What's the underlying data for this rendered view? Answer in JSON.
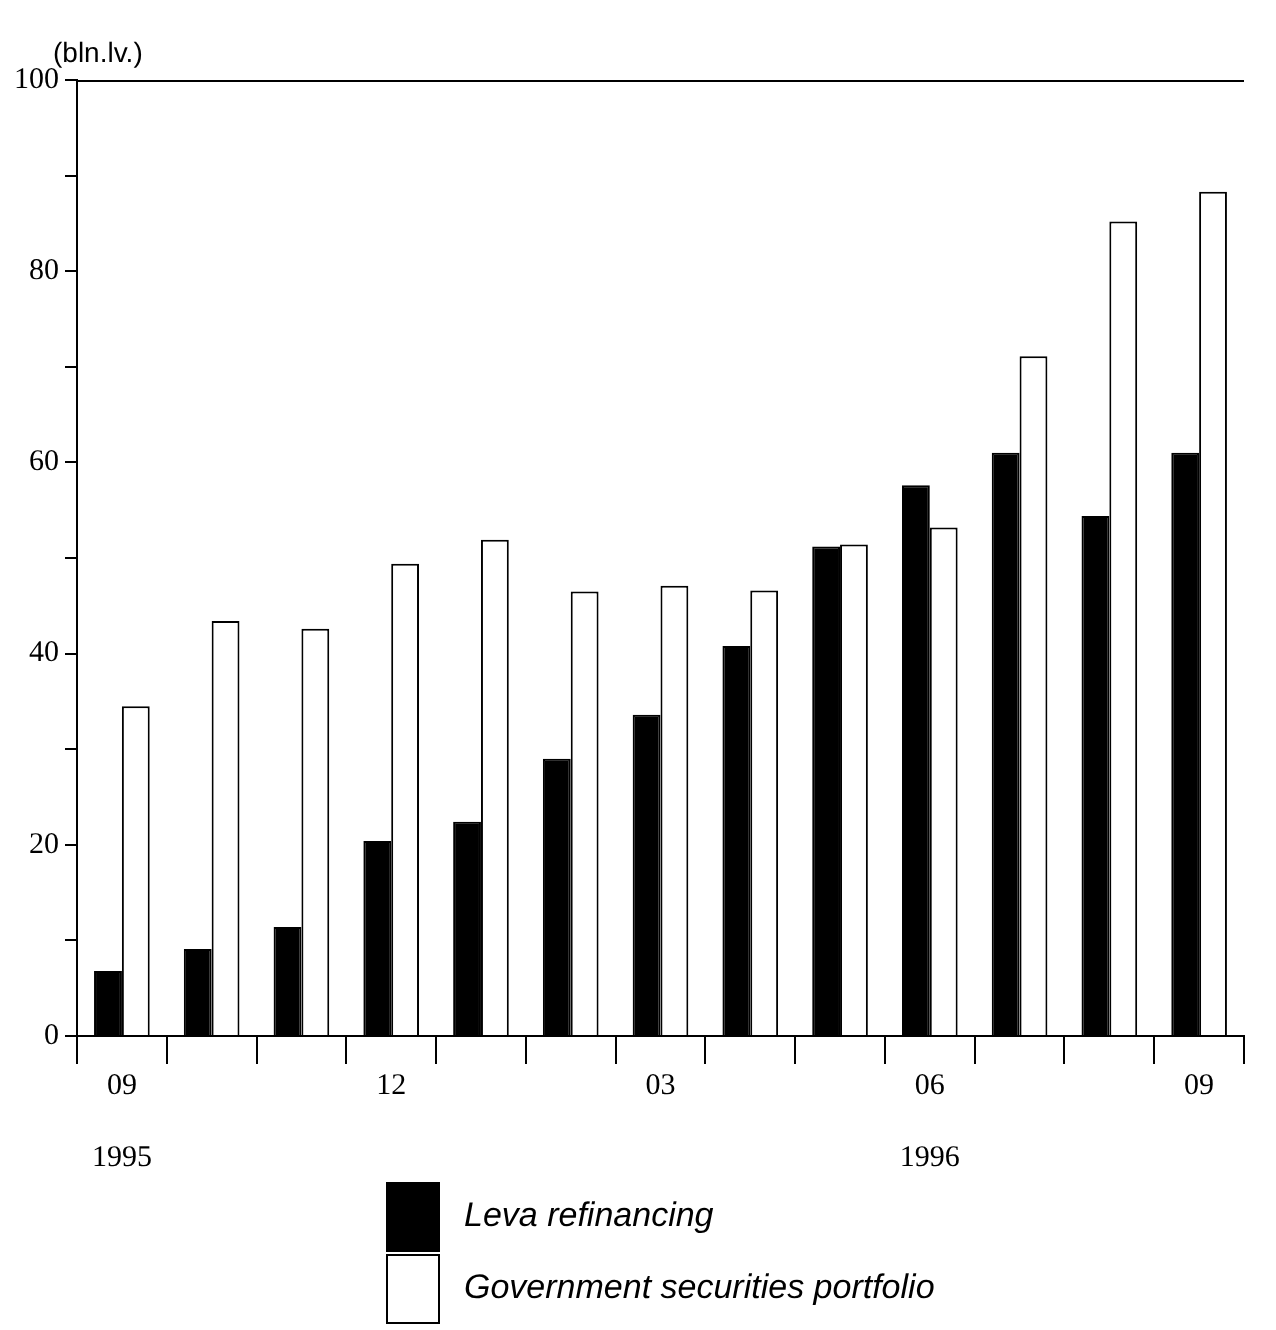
{
  "chart_data": {
    "type": "bar",
    "ylabel": "(bln.lv.)",
    "categories": [
      "09\n\n1995",
      null,
      null,
      "12",
      null,
      null,
      "03",
      null,
      null,
      "06\n\n1996",
      null,
      null,
      "09"
    ],
    "series": [
      {
        "name": "Leva refinancing",
        "color": "#000000",
        "values": [
          6.8,
          9.1,
          11.4,
          20.4,
          22.4,
          29.0,
          33.6,
          40.8,
          51.2,
          57.6,
          61.0,
          54.4,
          61.0
        ]
      },
      {
        "name": "Government securities portfolio",
        "color": "#ffffff",
        "values": [
          34.5,
          43.4,
          42.6,
          49.4,
          51.9,
          46.5,
          47.1,
          46.6,
          51.4,
          53.2,
          71.1,
          85.2,
          88.3
        ]
      }
    ],
    "ylim": [
      0,
      100
    ],
    "yticks": [
      0,
      {
        "value": 10,
        "label": null
      },
      20,
      {
        "value": 30,
        "label": null
      },
      40,
      {
        "value": 50,
        "label": null
      },
      60,
      {
        "value": 70,
        "label": null
      },
      80,
      {
        "value": 90,
        "label": null
      },
      100
    ],
    "grid": false,
    "legend": "bottom"
  }
}
